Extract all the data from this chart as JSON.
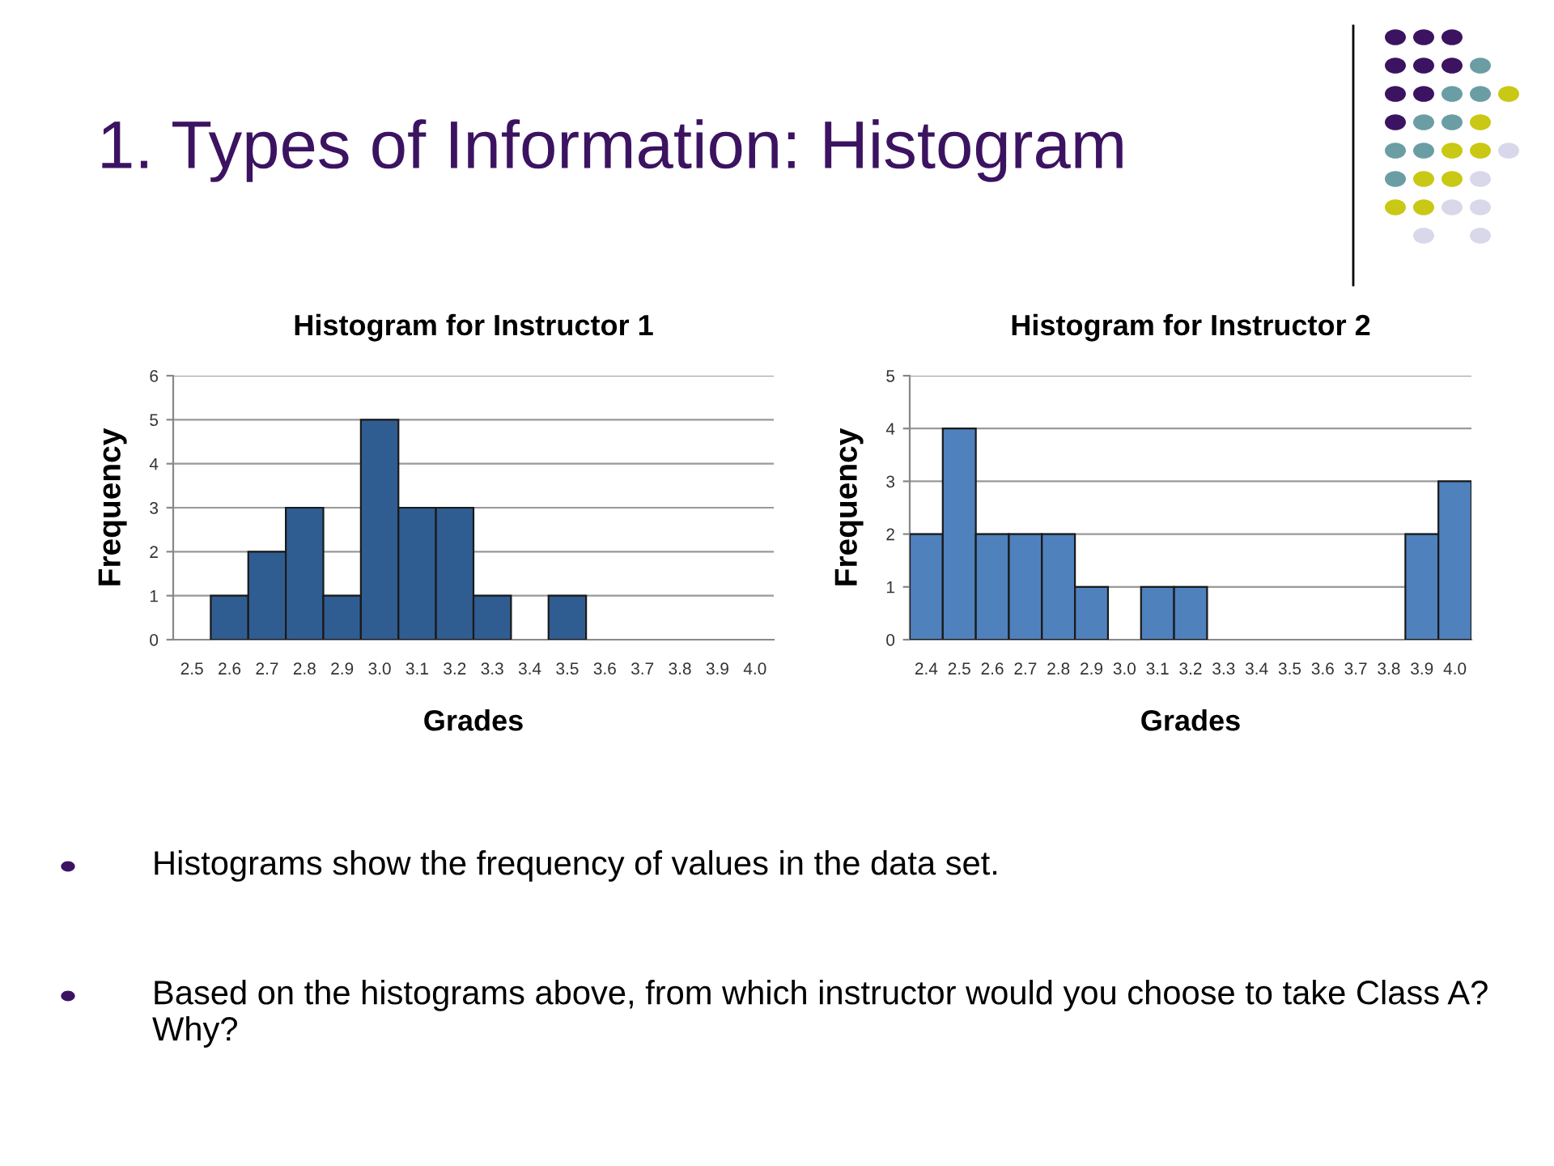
{
  "chart_data": [
    {
      "type": "bar",
      "title": "Histogram for Instructor 1",
      "xlabel": "Grades",
      "ylabel": "Frequency",
      "categories": [
        "2.5",
        "2.6",
        "2.7",
        "2.8",
        "2.9",
        "3.0",
        "3.1",
        "3.2",
        "3.3",
        "3.4",
        "3.5",
        "3.6",
        "3.7",
        "3.8",
        "3.9",
        "4.0"
      ],
      "values": [
        0,
        1,
        2,
        3,
        1,
        5,
        3,
        3,
        1,
        0,
        1,
        0,
        0,
        0,
        0,
        0
      ],
      "color": "#305d91",
      "ylim": [
        0,
        6
      ],
      "yticks": [
        0,
        1,
        2,
        3,
        4,
        5,
        6
      ],
      "grid": "y",
      "legend": false,
      "annotations": [
        "1. Types of Information: Histogram",
        "Histograms show the frequency of values in the data set.",
        "Based on the histograms above, from which instructor would you choose to take Class A?  Why?"
      ]
    },
    {
      "type": "bar",
      "title": "Histogram for Instructor 2",
      "xlabel": "Grades",
      "ylabel": "Frequency",
      "categories": [
        "2.4",
        "2.5",
        "2.6",
        "2.7",
        "2.8",
        "2.9",
        "3.0",
        "3.1",
        "3.2",
        "3.3",
        "3.4",
        "3.5",
        "3.6",
        "3.7",
        "3.8",
        "3.9",
        "4.0"
      ],
      "values": [
        2,
        4,
        2,
        2,
        2,
        1,
        0,
        1,
        1,
        0,
        0,
        0,
        0,
        0,
        0,
        2,
        3
      ],
      "color": "#4f81bd",
      "ylim": [
        0,
        5
      ],
      "yticks": [
        0,
        1,
        2,
        3,
        4,
        5
      ],
      "grid": "y",
      "legend": false
    }
  ]
}
